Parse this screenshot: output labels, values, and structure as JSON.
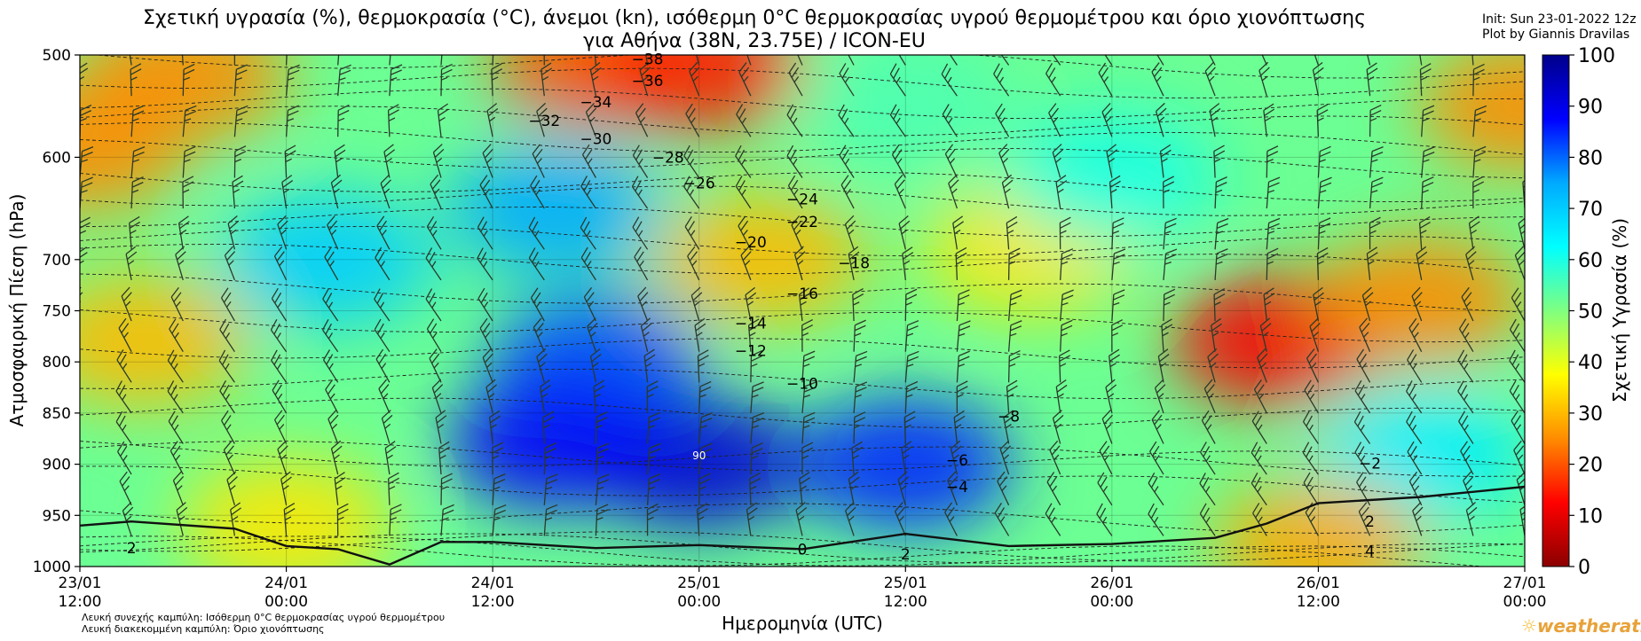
{
  "title_line1": "Σχετική υγρασία (%), θερμοκρασία (°C), άνεμοι (kn), ισόθερμη 0°C θερμοκρασίας υγρού θερμομέτρου και όριο χιονόπτωσης",
  "title_line2": "για Αθήνα (38N, 23.75E) / ICON-EU",
  "init_text": "Init: Sun 23-01-2022 12z",
  "plot_by": "Plot by Giannis Dravilas",
  "legend_note1": "Λευκή συνεχής καμπύλη: Ισόθερμη 0°C θερμοκρασίας υγρού θερμομέτρου",
  "legend_note2": "Λευκή διακεκομμένη καμπύλη: Όριο χιονόπτωσης",
  "logo_text": "weatherathens",
  "chart_data": {
    "type": "heatmap",
    "xlabel": "Ημερομηνία (UTC)",
    "ylabel": "Ατμοσφαιρική Πίεση (hPa)",
    "colorbar_label": "Σχετική Υγρασία (%)",
    "x_ticks": [
      {
        "date": "23/01",
        "time": "12:00"
      },
      {
        "date": "24/01",
        "time": "00:00"
      },
      {
        "date": "24/01",
        "time": "12:00"
      },
      {
        "date": "25/01",
        "time": "00:00"
      },
      {
        "date": "25/01",
        "time": "12:00"
      },
      {
        "date": "26/01",
        "time": "00:00"
      },
      {
        "date": "26/01",
        "time": "12:00"
      },
      {
        "date": "27/01",
        "time": "00:00"
      }
    ],
    "y_ticks": [
      500,
      600,
      700,
      750,
      800,
      850,
      900,
      950,
      1000
    ],
    "y_range": [
      1000,
      500
    ],
    "colorbar_ticks": [
      0,
      10,
      20,
      30,
      40,
      50,
      60,
      70,
      80,
      90,
      100
    ],
    "colorbar_range": [
      0,
      100
    ],
    "colorscale": [
      "#8b0000",
      "#ff0000",
      "#ff8c00",
      "#ffff00",
      "#80ff80",
      "#00ffff",
      "#00aaff",
      "#0000ff",
      "#00008b"
    ],
    "humidity_blobs": [
      {
        "t": 0,
        "p": 590,
        "rh": 25
      },
      {
        "t": 0.5,
        "p": 520,
        "rh": 25
      },
      {
        "t": 2.5,
        "p": 505,
        "rh": 20
      },
      {
        "t": 3,
        "p": 510,
        "rh": 15
      },
      {
        "t": 7,
        "p": 550,
        "rh": 25
      },
      {
        "t": 5.8,
        "p": 780,
        "rh": 12
      },
      {
        "t": 6.5,
        "p": 740,
        "rh": 25
      },
      {
        "t": 3.3,
        "p": 700,
        "rh": 30
      },
      {
        "t": 4.6,
        "p": 690,
        "rh": 35
      },
      {
        "t": 0.3,
        "p": 780,
        "rh": 30
      },
      {
        "t": 1.2,
        "p": 700,
        "rh": 70
      },
      {
        "t": 2.3,
        "p": 650,
        "rh": 75
      },
      {
        "t": 2.5,
        "p": 800,
        "rh": 82
      },
      {
        "t": 3,
        "p": 900,
        "rh": 92
      },
      {
        "t": 4,
        "p": 900,
        "rh": 85
      },
      {
        "t": 2.3,
        "p": 880,
        "rh": 88
      },
      {
        "t": 5,
        "p": 620,
        "rh": 60
      },
      {
        "t": 6.5,
        "p": 890,
        "rh": 65
      },
      {
        "t": 4,
        "p": 550,
        "rh": 55
      },
      {
        "t": 1,
        "p": 960,
        "rh": 35
      },
      {
        "t": 6,
        "p": 980,
        "rh": 28
      }
    ],
    "temperature_labels": [
      {
        "t": 2.75,
        "p": 504,
        "text": "−38"
      },
      {
        "t": 2.75,
        "p": 525,
        "text": "−36"
      },
      {
        "t": 2.5,
        "p": 546,
        "text": "−34"
      },
      {
        "t": 2.25,
        "p": 564,
        "text": "−32"
      },
      {
        "t": 2.5,
        "p": 582,
        "text": "−30"
      },
      {
        "t": 2.85,
        "p": 600,
        "text": "−28"
      },
      {
        "t": 3,
        "p": 625,
        "text": "−26"
      },
      {
        "t": 3.5,
        "p": 641,
        "text": "−24"
      },
      {
        "t": 3.5,
        "p": 663,
        "text": "−22"
      },
      {
        "t": 3.25,
        "p": 683,
        "text": "−20"
      },
      {
        "t": 3.75,
        "p": 703,
        "text": "−18"
      },
      {
        "t": 3.5,
        "p": 733,
        "text": "−16"
      },
      {
        "t": 3.25,
        "p": 762,
        "text": "−14"
      },
      {
        "t": 3.25,
        "p": 789,
        "text": "−12"
      },
      {
        "t": 3.5,
        "p": 821,
        "text": "−10"
      },
      {
        "t": 4.5,
        "p": 853,
        "text": "−8"
      },
      {
        "t": 4.25,
        "p": 896,
        "text": "−6"
      },
      {
        "t": 4.25,
        "p": 922,
        "text": "−4"
      },
      {
        "t": 6.25,
        "p": 899,
        "text": "−2"
      },
      {
        "t": 6.25,
        "p": 956,
        "text": "2"
      },
      {
        "t": 6.25,
        "p": 985,
        "text": "4"
      },
      {
        "t": 3.5,
        "p": 983,
        "text": "0"
      },
      {
        "t": 4,
        "p": 988,
        "text": "2"
      },
      {
        "t": 0.25,
        "p": 982,
        "text": "2"
      }
    ],
    "isotherm_label": {
      "t": 3,
      "p": 895,
      "text": "90"
    },
    "wet_bulb_zero_line": [
      {
        "t": 0,
        "p": 960
      },
      {
        "t": 0.25,
        "p": 956
      },
      {
        "t": 0.75,
        "p": 963
      },
      {
        "t": 1,
        "p": 980
      },
      {
        "t": 1.25,
        "p": 983
      },
      {
        "t": 1.5,
        "p": 998
      },
      {
        "t": 1.75,
        "p": 976
      },
      {
        "t": 2,
        "p": 976
      },
      {
        "t": 2.5,
        "p": 982
      },
      {
        "t": 3,
        "p": 979
      },
      {
        "t": 3.5,
        "p": 983
      },
      {
        "t": 4,
        "p": 968
      },
      {
        "t": 4.5,
        "p": 980
      },
      {
        "t": 5,
        "p": 978
      },
      {
        "t": 5.5,
        "p": 972
      },
      {
        "t": 5.75,
        "p": 958
      },
      {
        "t": 6,
        "p": 938
      },
      {
        "t": 6.5,
        "p": 932
      },
      {
        "t": 7,
        "p": 922
      }
    ]
  }
}
